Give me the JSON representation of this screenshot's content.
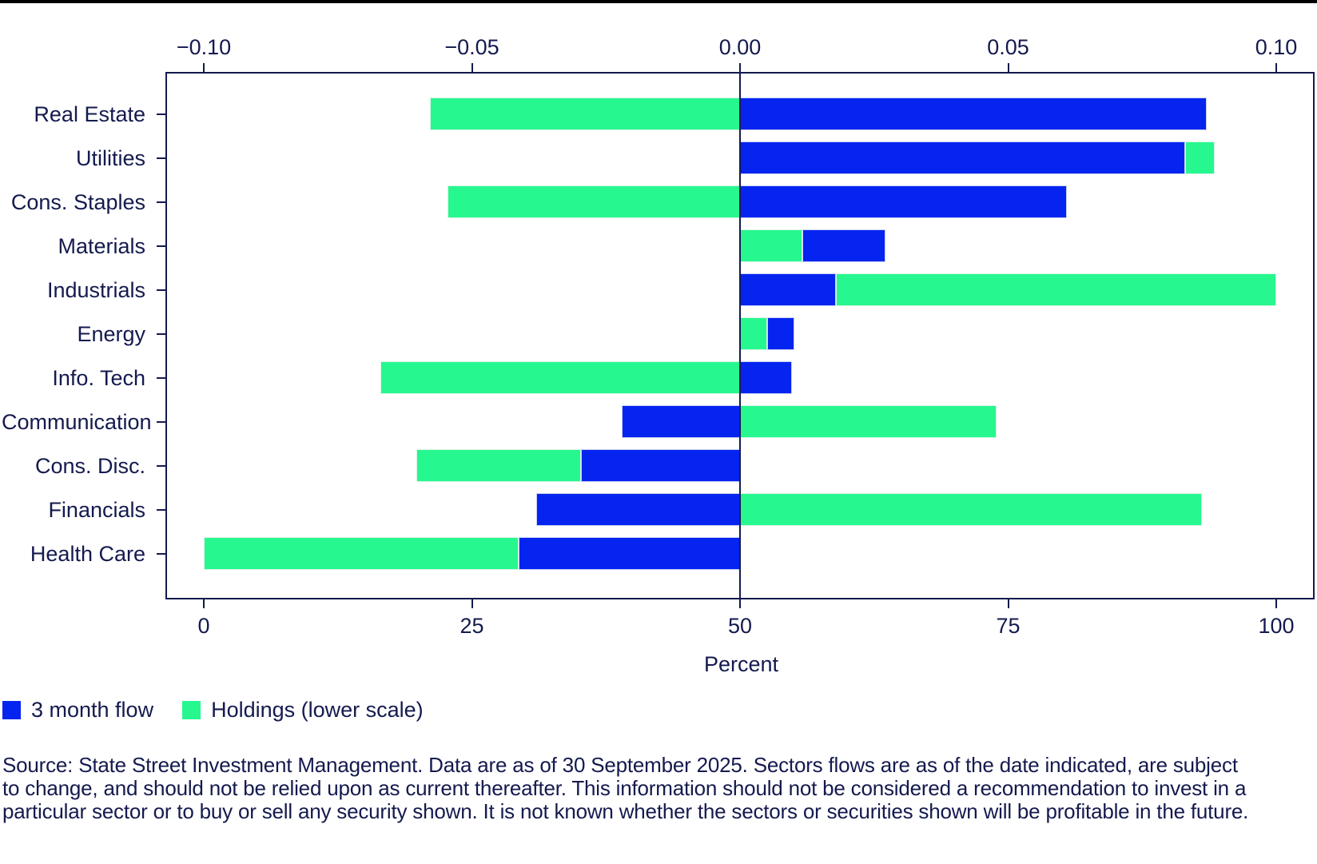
{
  "colors": {
    "flow_blue": "#0524f0",
    "holdings_green": "#26f78f",
    "ink_navy": "#141a4e",
    "top_rule_black": "#000000"
  },
  "chart_data": {
    "type": "bar",
    "orientation": "horizontal",
    "title": "",
    "top_axis": {
      "scale_of": "3 month flow",
      "min": -0.1,
      "max": 0.1,
      "ticks": [
        {
          "label": "−0.10",
          "value": -0.1
        },
        {
          "label": "−0.05",
          "value": -0.05
        },
        {
          "label": "0.00",
          "value": 0.0
        },
        {
          "label": "0.05",
          "value": 0.05
        },
        {
          "label": "0.10",
          "value": 0.1
        }
      ]
    },
    "bottom_axis": {
      "scale_of": "Holdings",
      "title": "Percent",
      "min": 0,
      "max": 100,
      "ticks": [
        {
          "label": "0",
          "value": 0
        },
        {
          "label": "25",
          "value": 25
        },
        {
          "label": "50",
          "value": 50
        },
        {
          "label": "75",
          "value": 75
        },
        {
          "label": "100",
          "value": 100
        }
      ]
    },
    "series": [
      {
        "name": "3 month flow",
        "color": "#0524f0",
        "scale": "top"
      },
      {
        "name": "Holdings (lower scale)",
        "color": "#26f78f",
        "scale": "bottom"
      }
    ],
    "categories": [
      "Real Estate",
      "Utilities",
      "Cons. Staples",
      "Materials",
      "Industrials",
      "Energy",
      "Info. Tech",
      "Communication",
      "Cons. Disc.",
      "Financials",
      "Health Care"
    ],
    "rows": [
      {
        "category": "Real Estate",
        "flow_value": 0.087,
        "holdings_extent": 28.9,
        "flow_span": [
          0,
          0.087
        ],
        "holdings_span": [
          21.1,
          50
        ]
      },
      {
        "category": "Utilities",
        "flow_value": 0.083,
        "holdings_extent": 2.8,
        "flow_span": [
          0,
          0.083
        ],
        "holdings_span": [
          91.5,
          94.3
        ]
      },
      {
        "category": "Cons. Staples",
        "flow_value": 0.061,
        "holdings_extent": 27.3,
        "flow_span": [
          0,
          0.061
        ],
        "holdings_span": [
          22.7,
          50
        ]
      },
      {
        "category": "Materials",
        "flow_value": 0.016,
        "holdings_extent": 5.8,
        "flow_span": [
          0.0116,
          0.0271
        ],
        "holdings_span": [
          50,
          55.8
        ]
      },
      {
        "category": "Industrials",
        "flow_value": 0.018,
        "holdings_extent": 41.1,
        "flow_span": [
          0,
          0.0179
        ],
        "holdings_span": [
          58.95,
          100
        ]
      },
      {
        "category": "Energy",
        "flow_value": 0.005,
        "holdings_extent": 2.5,
        "flow_span": [
          0.005,
          0.0102
        ],
        "holdings_span": [
          50,
          52.5
        ]
      },
      {
        "category": "Info. Tech",
        "flow_value": 0.01,
        "holdings_extent": 33.5,
        "flow_span": [
          0,
          0.0097
        ],
        "holdings_span": [
          16.5,
          50
        ]
      },
      {
        "category": "Communication",
        "flow_value": -0.022,
        "holdings_extent": 23.9,
        "flow_span": [
          -0.022,
          0
        ],
        "holdings_span": [
          50,
          73.9
        ]
      },
      {
        "category": "Cons. Disc.",
        "flow_value": -0.03,
        "holdings_extent": 15.3,
        "flow_span": [
          -0.0297,
          0
        ],
        "holdings_span": [
          19.85,
          35.15
        ]
      },
      {
        "category": "Financials",
        "flow_value": -0.038,
        "holdings_extent": 43.1,
        "flow_span": [
          -0.038,
          0
        ],
        "holdings_span": [
          50,
          93.1
        ]
      },
      {
        "category": "Health Care",
        "flow_value": -0.041,
        "holdings_extent": 29.4,
        "flow_span": [
          -0.0413,
          0
        ],
        "holdings_span": [
          0,
          29.35
        ]
      }
    ],
    "legend_position": "bottom-left",
    "grid": false
  },
  "legend": {
    "flow_label": "3 month flow",
    "holdings_label": "Holdings (lower scale)"
  },
  "bottom_axis_title": "Percent",
  "source_note": {
    "line1": "Source: State Street Investment Management. Data are as of 30 September 2025. Sectors flows are as of the date indicated, are subject",
    "line2": "to change, and should not be relied upon as current thereafter. This information should not be considered a recommendation to invest in a",
    "line3": "particular sector or to buy or sell any security shown. It is not known whether the sectors or securities shown will be profitable in the future."
  }
}
